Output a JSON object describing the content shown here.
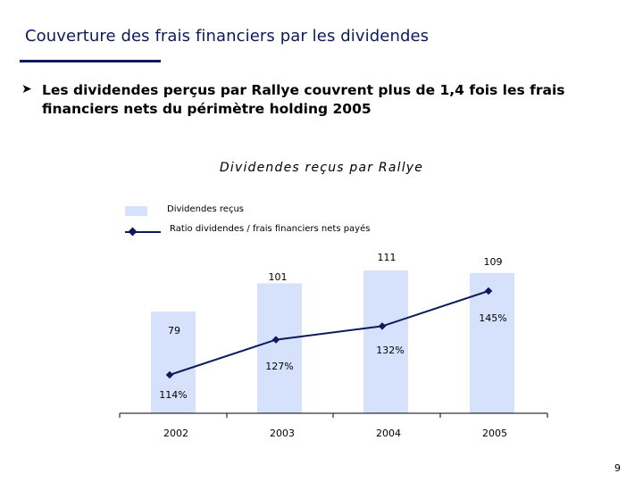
{
  "slide": {
    "title": "Couverture des frais financiers par les dividendes",
    "bullet": "Les dividendes perçus par Rallye couvrent plus de 1,4 fois les frais financiers nets du périmètre holding 2005",
    "page_number": "9"
  },
  "colors": {
    "title": "#0d1a5c",
    "bar": "#d6e2fb",
    "line": "#0d1a5c"
  },
  "chart_data": {
    "type": "bar",
    "title": "Dividendes reçus par Rallye",
    "categories": [
      "2002",
      "2003",
      "2004",
      "2005"
    ],
    "series": [
      {
        "name": "Dividendes reçus",
        "type": "bar",
        "values": [
          79,
          101,
          111,
          109
        ],
        "labels": [
          "79",
          "101",
          "111",
          "109"
        ]
      },
      {
        "name": "Ratio dividendes / frais financiers nets payés",
        "type": "line",
        "values": [
          114,
          127,
          132,
          145
        ],
        "labels": [
          "114%",
          "127%",
          "132%",
          "145%"
        ]
      }
    ],
    "legend_position": "top-left",
    "grid": false
  }
}
